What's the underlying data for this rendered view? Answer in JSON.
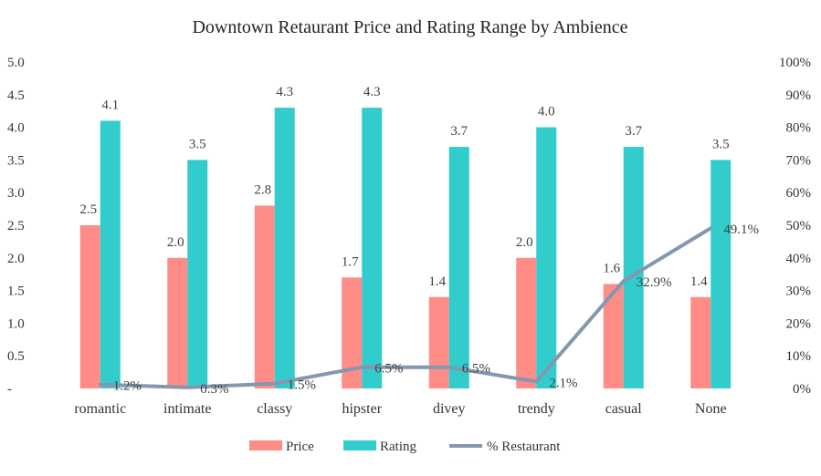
{
  "chart_data": {
    "type": "bar",
    "title": "Downtown Retaurant Price and Rating Range by Ambience",
    "categories": [
      "romantic",
      "intimate",
      "classy",
      "hipster",
      "divey",
      "trendy",
      "casual",
      "None"
    ],
    "series": [
      {
        "name": "Price",
        "type": "bar",
        "axis": "left",
        "color": "#FF8C87",
        "values": [
          2.5,
          2.0,
          2.8,
          1.7,
          1.4,
          2.0,
          1.6,
          1.4
        ],
        "labels": [
          "2.5",
          "2.0",
          "2.8",
          "1.7",
          "1.4",
          "2.0",
          "1.6",
          "1.4"
        ]
      },
      {
        "name": "Rating",
        "type": "bar",
        "axis": "left",
        "color": "#33CCCC",
        "values": [
          4.1,
          3.5,
          4.3,
          4.3,
          3.7,
          4.0,
          3.7,
          3.5
        ],
        "labels": [
          "4.1",
          "3.5",
          "4.3",
          "4.3",
          "3.7",
          "4.0",
          "3.7",
          "3.5"
        ]
      },
      {
        "name": "% Restaurant",
        "type": "line",
        "axis": "right",
        "color": "#8497B0",
        "values": [
          1.2,
          0.3,
          1.5,
          6.5,
          6.5,
          2.1,
          32.9,
          49.1
        ],
        "labels": [
          "1.2%",
          "0.3%",
          "1.5%",
          "6.5%",
          "6.5%",
          "2.1%",
          "32.9%",
          "49.1%"
        ]
      }
    ],
    "y_left": {
      "ylim": [
        0,
        5
      ],
      "ticks": [
        0,
        0.5,
        1.0,
        1.5,
        2.0,
        2.5,
        3.0,
        3.5,
        4.0,
        4.5,
        5.0
      ],
      "tick_labels": [
        "-",
        "0.5",
        "1.0",
        "1.5",
        "2.0",
        "2.5",
        "3.0",
        "3.5",
        "4.0",
        "4.5",
        "5.0"
      ]
    },
    "y_right": {
      "ylim": [
        0,
        100
      ],
      "ticks": [
        0,
        10,
        20,
        30,
        40,
        50,
        60,
        70,
        80,
        90,
        100
      ],
      "tick_labels": [
        "0%",
        "10%",
        "20%",
        "30%",
        "40%",
        "50%",
        "60%",
        "70%",
        "80%",
        "90%",
        "100%"
      ]
    },
    "grid": false,
    "legend": {
      "position": "bottom",
      "entries": [
        "Price",
        "Rating",
        "% Restaurant"
      ]
    }
  }
}
